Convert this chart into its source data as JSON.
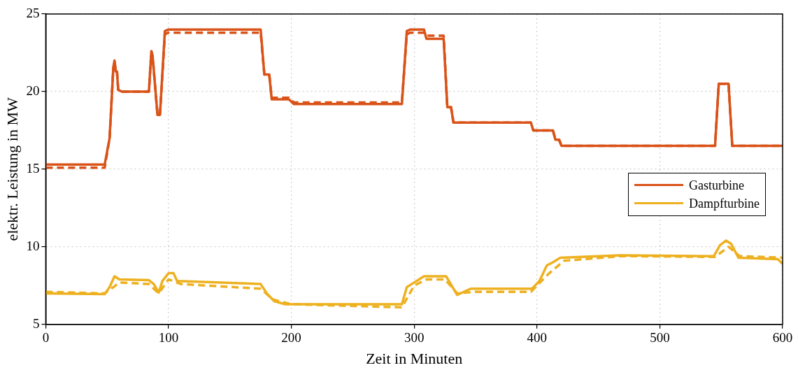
{
  "chart_data": {
    "type": "line",
    "xlabel": "Zeit in Minuten",
    "ylabel": "elektr. Leistung in MW",
    "xlim": [
      0,
      600
    ],
    "xticks": [
      0,
      100,
      200,
      300,
      400,
      500,
      600
    ],
    "ylim": [
      5,
      25
    ],
    "yticks": [
      5,
      10,
      15,
      20,
      25
    ],
    "grid": true,
    "legend": "right",
    "marker": "none",
    "series": [
      {
        "name": "Gasturbine",
        "color": "#d95319",
        "line_style": "solid",
        "x": [
          0,
          48,
          52,
          55,
          56,
          57,
          58,
          59,
          62,
          84,
          86,
          87,
          91,
          93,
          97,
          100,
          175,
          178,
          182,
          184,
          198,
          202,
          290,
          294,
          297,
          308,
          310,
          324,
          327,
          330,
          332,
          395,
          397,
          413,
          415,
          418,
          420,
          545,
          548,
          556,
          559,
          600
        ],
        "values": [
          15.3,
          15.3,
          17,
          21.5,
          22,
          21.3,
          21.3,
          20.1,
          20,
          20,
          22.6,
          22.3,
          18.5,
          18.5,
          23.9,
          24,
          24,
          21.1,
          21.1,
          19.5,
          19.5,
          19.2,
          19.2,
          23.9,
          24,
          24,
          23.4,
          23.4,
          19,
          19,
          18,
          18,
          17.5,
          17.5,
          16.9,
          16.9,
          16.5,
          16.5,
          20.5,
          20.5,
          16.5,
          16.5
        ]
      },
      {
        "color": "#d95319",
        "line_style": "dashed",
        "x": [
          0,
          48,
          52,
          55,
          56,
          57,
          58,
          59,
          62,
          84,
          86,
          87,
          91,
          93,
          97,
          100,
          175,
          178,
          182,
          184,
          198,
          202,
          290,
          294,
          297,
          308,
          310,
          324,
          327,
          330,
          332,
          395,
          397,
          413,
          415,
          418,
          420,
          545,
          548,
          556,
          559,
          600
        ],
        "values": [
          15.1,
          15.1,
          17,
          21.5,
          22,
          21.3,
          21.3,
          20.1,
          20,
          20,
          22.6,
          22.3,
          18.5,
          18.5,
          23.7,
          23.8,
          23.8,
          21.1,
          21.1,
          19.6,
          19.6,
          19.3,
          19.3,
          23.7,
          23.8,
          23.8,
          23.6,
          23.6,
          19,
          19,
          18,
          18,
          17.5,
          17.5,
          16.9,
          16.9,
          16.5,
          16.5,
          20.5,
          20.5,
          16.5,
          16.5
        ]
      },
      {
        "name": "Dampfturbine",
        "color": "#edb120",
        "line_style": "solid",
        "x": [
          0,
          48,
          52,
          56,
          60,
          84,
          88,
          92,
          95,
          100,
          104,
          107,
          175,
          180,
          186,
          195,
          290,
          294,
          298,
          308,
          326,
          335,
          346,
          396,
          402,
          408,
          413,
          419,
          468,
          544,
          549,
          554,
          558,
          564,
          596,
          600
        ],
        "values": [
          7.0,
          6.95,
          7.4,
          8.1,
          7.9,
          7.85,
          7.6,
          7.05,
          7.8,
          8.3,
          8.3,
          7.8,
          7.6,
          7.0,
          6.5,
          6.3,
          6.3,
          7.4,
          7.6,
          8.1,
          8.1,
          6.9,
          7.3,
          7.3,
          7.8,
          8.8,
          9.0,
          9.3,
          9.45,
          9.4,
          10.1,
          10.4,
          10.2,
          9.3,
          9.2,
          8.9
        ]
      },
      {
        "color": "#edb120",
        "line_style": "dashed",
        "x": [
          0,
          48,
          55,
          60,
          84,
          92,
          100,
          110,
          175,
          185,
          200,
          290,
          300,
          310,
          325,
          335,
          350,
          395,
          410,
          422,
          470,
          545,
          556,
          565,
          600
        ],
        "values": [
          7.1,
          7.0,
          7.4,
          7.7,
          7.6,
          7.0,
          7.9,
          7.6,
          7.3,
          6.6,
          6.3,
          6.1,
          7.5,
          7.9,
          7.9,
          7.0,
          7.1,
          7.1,
          8.3,
          9.1,
          9.4,
          9.35,
          10.0,
          9.4,
          9.3
        ]
      }
    ]
  }
}
